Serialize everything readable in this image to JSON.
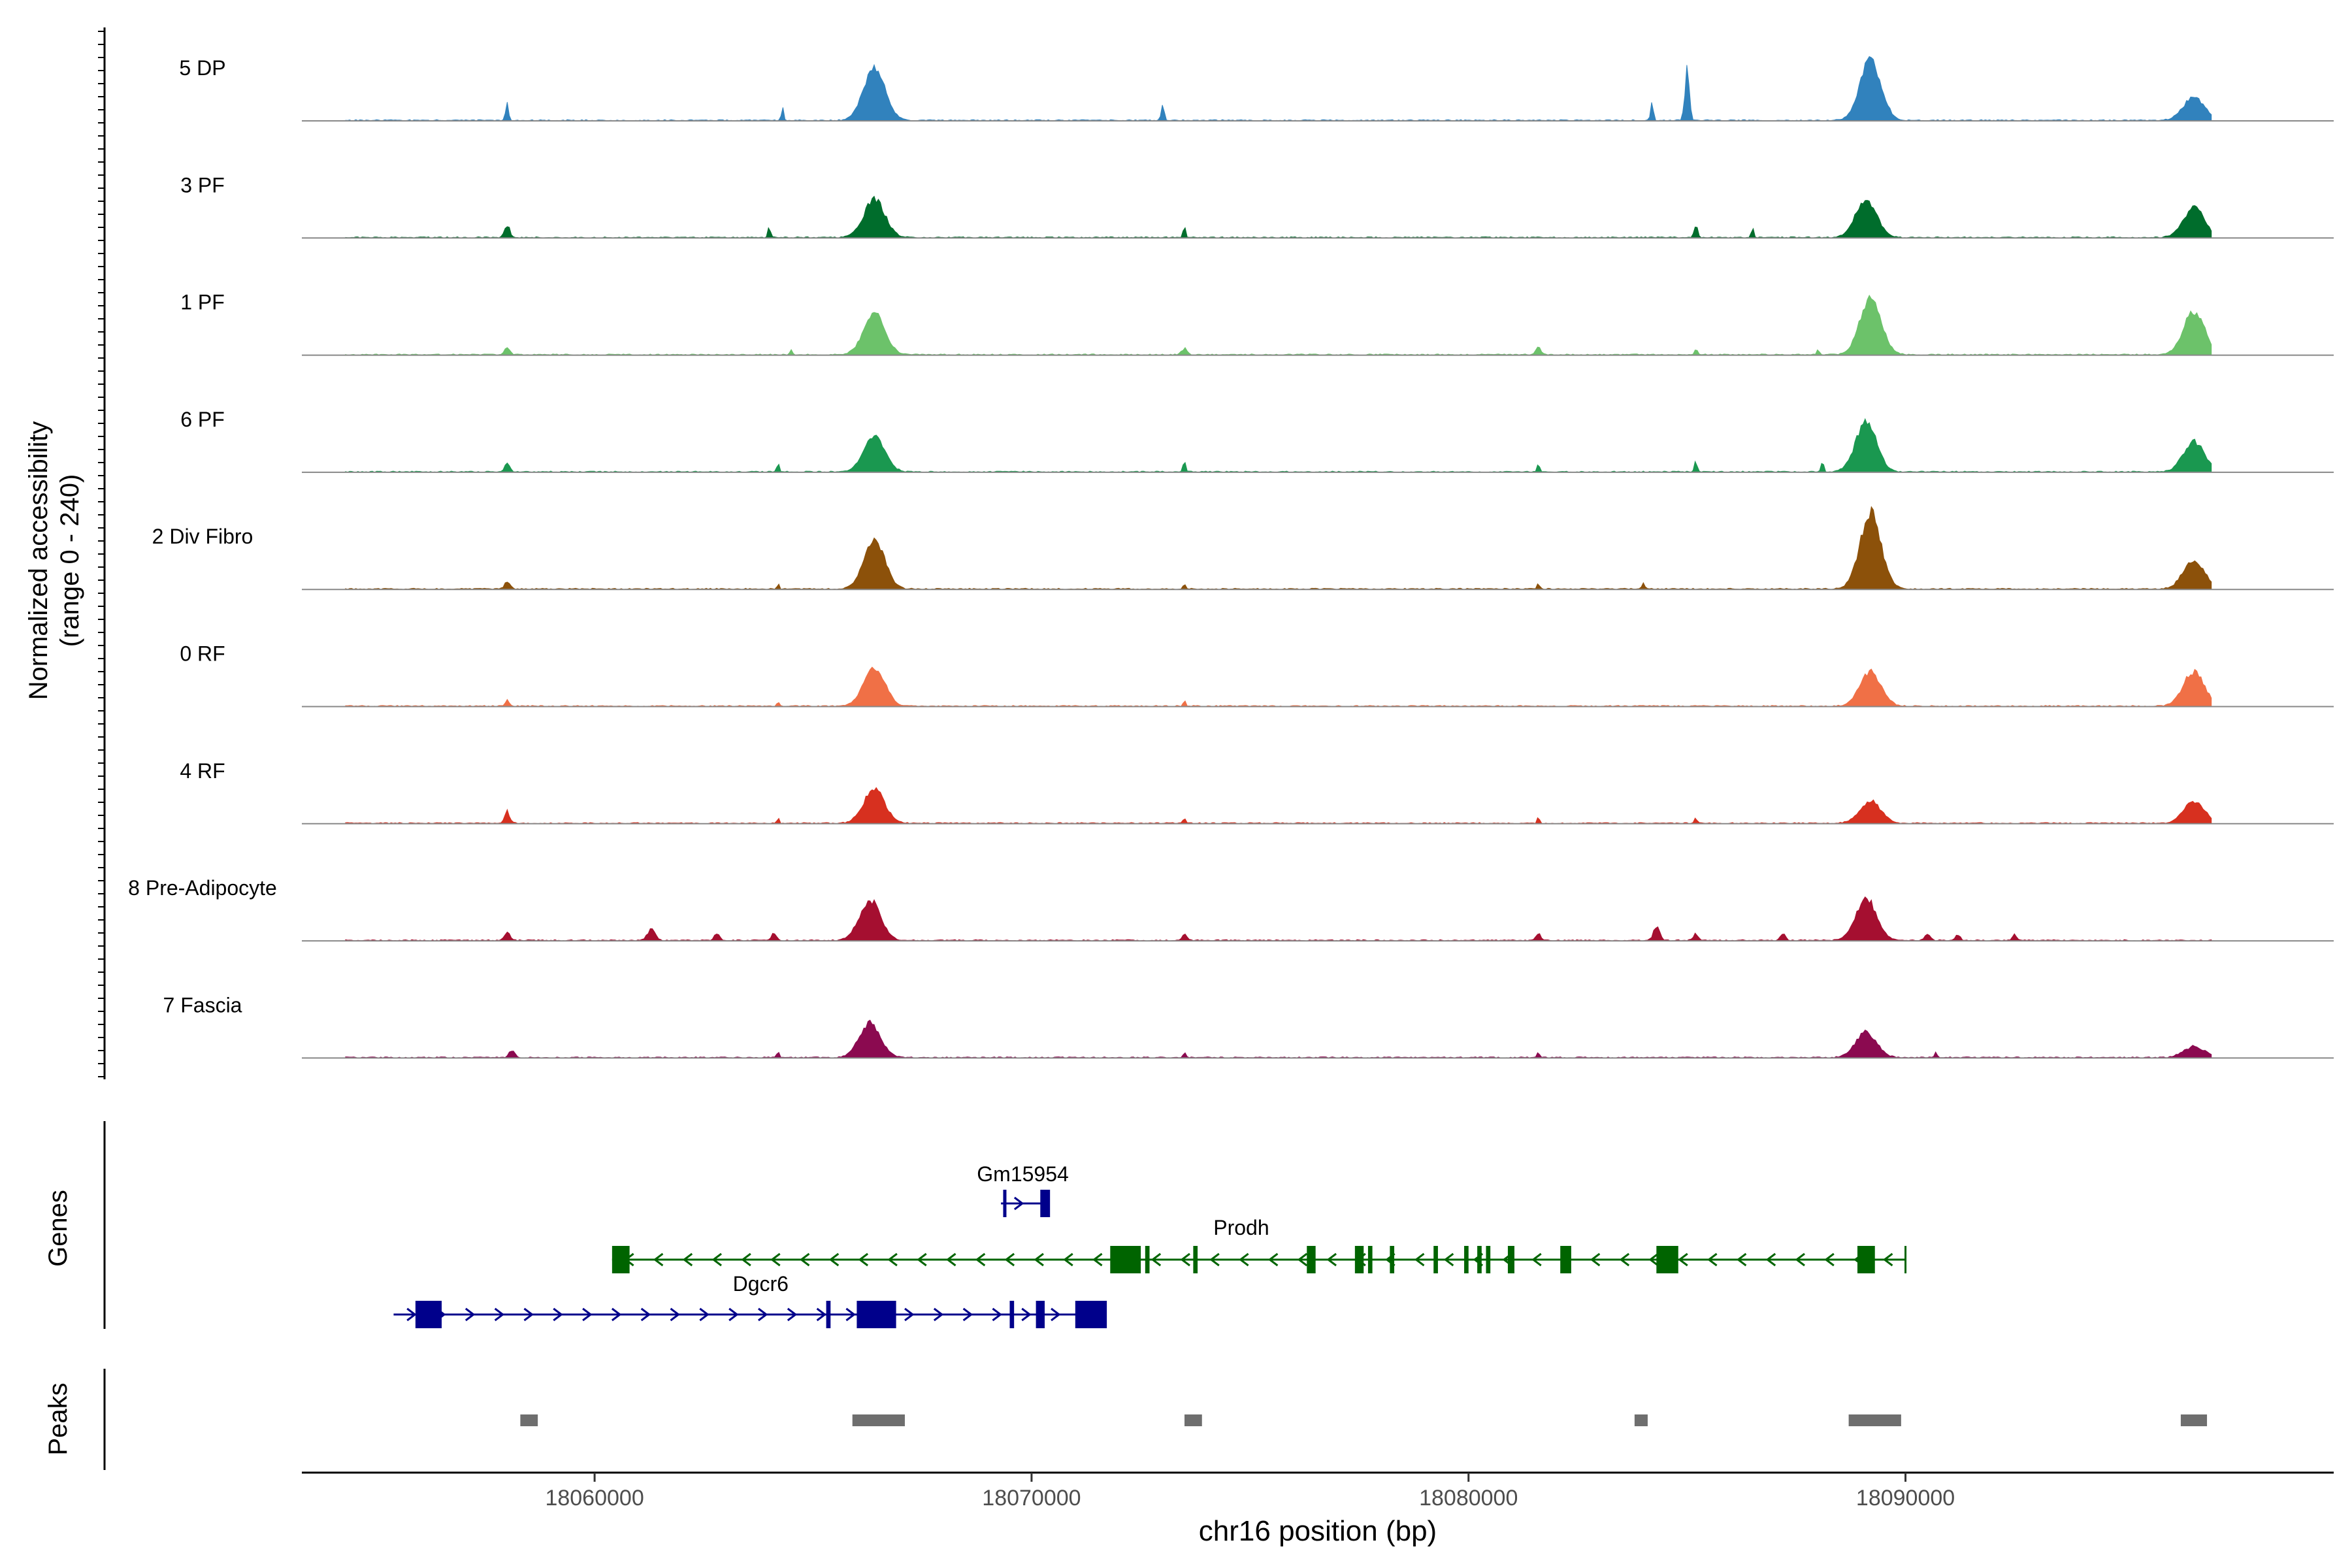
{
  "chart_data": {
    "type": "area",
    "x_axis": {
      "label": "chr16 position (bp)",
      "range": [
        18053300,
        18099800
      ],
      "ticks": [
        18060000,
        18070000,
        18080000,
        18090000
      ],
      "tick_labels": [
        "18060000",
        "18070000",
        "18080000",
        "18090000"
      ]
    },
    "y_axis": {
      "label_line1": "Normalized accessibility",
      "label_line2": "(range 0 - 240)",
      "range": [
        0,
        240
      ]
    },
    "tracks": [
      {
        "name": "5 DP",
        "color": "#3182BD",
        "peaks": [
          [
            18066400,
            240,
            150
          ],
          [
            18089200,
            240,
            165
          ],
          [
            18096600,
            240,
            65
          ]
        ],
        "small": [
          [
            18058000,
            30,
            60
          ],
          [
            18064300,
            25,
            50
          ],
          [
            18073000,
            30,
            60
          ],
          [
            18085000,
            50,
            150
          ],
          [
            18084200,
            30,
            60
          ]
        ]
      },
      {
        "name": "3 PF",
        "color": "#006D2C",
        "peaks": [
          [
            18066400,
            240,
            105
          ],
          [
            18089100,
            240,
            105
          ],
          [
            18096600,
            240,
            85
          ]
        ],
        "small": [
          [
            18058000,
            60,
            40
          ],
          [
            18064000,
            25,
            40
          ],
          [
            18073500,
            25,
            40
          ],
          [
            18085200,
            40,
            40
          ],
          [
            18086500,
            25,
            40
          ]
        ]
      },
      {
        "name": "1 PF",
        "color": "#6CC26A",
        "peaks": [
          [
            18066400,
            240,
            115
          ],
          [
            18089200,
            240,
            160
          ],
          [
            18096600,
            240,
            120
          ]
        ],
        "small": [
          [
            18058000,
            60,
            20
          ],
          [
            18064500,
            25,
            20
          ],
          [
            18073500,
            60,
            20
          ],
          [
            18081600,
            60,
            20
          ],
          [
            18085200,
            30,
            20
          ],
          [
            18088000,
            25,
            20
          ]
        ]
      },
      {
        "name": "6 PF",
        "color": "#1A9850",
        "peaks": [
          [
            18066400,
            240,
            100
          ],
          [
            18089100,
            240,
            140
          ],
          [
            18096600,
            240,
            85
          ]
        ],
        "small": [
          [
            18058000,
            60,
            30
          ],
          [
            18064200,
            25,
            30
          ],
          [
            18073500,
            30,
            30
          ],
          [
            18081600,
            25,
            30
          ],
          [
            18085200,
            30,
            30
          ],
          [
            18088100,
            30,
            30
          ]
        ]
      },
      {
        "name": "2 Div Fibro",
        "color": "#8C510A",
        "peaks": [
          [
            18066400,
            240,
            135
          ],
          [
            18089200,
            240,
            210
          ],
          [
            18096600,
            240,
            80
          ]
        ],
        "small": [
          [
            18058000,
            60,
            25
          ],
          [
            18064200,
            25,
            20
          ],
          [
            18073500,
            30,
            20
          ],
          [
            18081600,
            25,
            20
          ],
          [
            18084000,
            30,
            20
          ]
        ]
      },
      {
        "name": "0 RF",
        "color": "#F07046",
        "peaks": [
          [
            18066400,
            240,
            110
          ],
          [
            18089200,
            240,
            95
          ],
          [
            18096600,
            240,
            95
          ]
        ],
        "small": [
          [
            18058000,
            40,
            20
          ],
          [
            18064200,
            25,
            15
          ],
          [
            18073500,
            25,
            15
          ]
        ]
      },
      {
        "name": "4 RF",
        "color": "#D7301F",
        "peaks": [
          [
            18066400,
            240,
            95
          ],
          [
            18089200,
            240,
            60
          ],
          [
            18096600,
            240,
            60
          ]
        ],
        "small": [
          [
            18058000,
            60,
            40
          ],
          [
            18064200,
            25,
            20
          ],
          [
            18073500,
            25,
            20
          ],
          [
            18081600,
            25,
            20
          ],
          [
            18085200,
            25,
            20
          ]
        ]
      },
      {
        "name": "8 Pre-Adipocyte",
        "color": "#A50F30",
        "peaks": [
          [
            18066300,
            240,
            110
          ],
          [
            18089100,
            240,
            115
          ]
        ],
        "small": [
          [
            18058000,
            60,
            30
          ],
          [
            18061300,
            80,
            40
          ],
          [
            18062800,
            60,
            25
          ],
          [
            18064100,
            60,
            20
          ],
          [
            18073500,
            60,
            20
          ],
          [
            18081600,
            60,
            20
          ],
          [
            18084300,
            70,
            40
          ],
          [
            18085200,
            60,
            20
          ],
          [
            18087200,
            60,
            20
          ],
          [
            18090500,
            60,
            20
          ],
          [
            18091200,
            50,
            20
          ],
          [
            18092500,
            50,
            20
          ]
        ]
      },
      {
        "name": "7 Fascia",
        "color": "#8B0A50",
        "peaks": [
          [
            18066300,
            240,
            95
          ],
          [
            18089100,
            240,
            70
          ],
          [
            18096600,
            240,
            30
          ]
        ],
        "small": [
          [
            18058100,
            60,
            25
          ],
          [
            18064200,
            30,
            20
          ],
          [
            18073500,
            25,
            20
          ],
          [
            18081600,
            25,
            20
          ],
          [
            18090700,
            25,
            20
          ]
        ]
      }
    ],
    "genes_label": "Genes",
    "genes": [
      {
        "name": "Gm15954",
        "strand": "+",
        "color": "#00008B",
        "start": 18069300,
        "end": 18070400,
        "exons": [
          [
            18069350,
            18069400
          ],
          [
            18070200,
            18070400
          ]
        ]
      },
      {
        "name": "Prodh",
        "strand": "-",
        "color": "#006400",
        "start": 18060400,
        "end": 18090000,
        "exons": [
          [
            18060400,
            18060800
          ],
          [
            18071800,
            18072500
          ],
          [
            18072600,
            18072700
          ],
          [
            18073700,
            18073800
          ],
          [
            18076300,
            18076500
          ],
          [
            18077400,
            18077600
          ],
          [
            18077700,
            18077800
          ],
          [
            18078200,
            18078300
          ],
          [
            18079200,
            18079300
          ],
          [
            18079900,
            18080000
          ],
          [
            18080200,
            18080300
          ],
          [
            18080400,
            18080500
          ],
          [
            18080900,
            18081050
          ],
          [
            18082100,
            18082350
          ],
          [
            18084300,
            18084800
          ],
          [
            18088900,
            18089300
          ]
        ]
      },
      {
        "name": "Dgcr6",
        "strand": "+",
        "color": "#00008B",
        "start": 18055400,
        "end": 18071700,
        "exons": [
          [
            18055900,
            18056500
          ],
          [
            18065300,
            18065400
          ],
          [
            18066000,
            18066900
          ],
          [
            18069500,
            18069600
          ],
          [
            18070100,
            18070300
          ],
          [
            18071000,
            18071700
          ]
        ]
      }
    ],
    "peaks_label": "Peaks",
    "peak_regions": [
      [
        18058300,
        18058700
      ],
      [
        18065900,
        18067100
      ],
      [
        18073500,
        18073900
      ],
      [
        18083800,
        18084100
      ],
      [
        18088700,
        18089900
      ],
      [
        18096300,
        18096900
      ]
    ]
  }
}
